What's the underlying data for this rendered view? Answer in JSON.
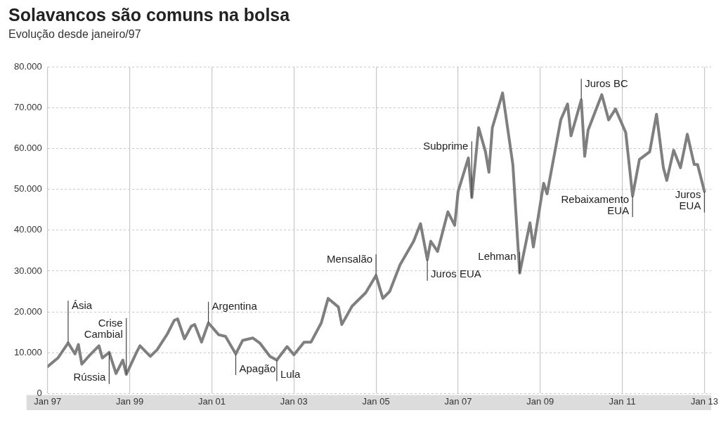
{
  "chart_data": {
    "type": "line",
    "title": "Solavancos são comuns na bolsa",
    "subtitle": "Evolução desde janeiro/97",
    "series": [
      {
        "color": "#7f7f7f",
        "x": [
          "1997-01",
          "1997-04",
          "1997-07",
          "1997-09",
          "1997-10",
          "1997-11",
          "1998-01",
          "1998-04",
          "1998-05",
          "1998-07",
          "1998-09",
          "1998-11",
          "1998-12",
          "1999-03",
          "1999-04",
          "1999-07",
          "1999-09",
          "1999-12",
          "2000-02",
          "2000-03",
          "2000-05",
          "2000-07",
          "2000-08",
          "2000-10",
          "2000-12",
          "2001-03",
          "2001-05",
          "2001-08",
          "2001-10",
          "2002-01",
          "2002-03",
          "2002-06",
          "2002-08",
          "2002-11",
          "2003-01",
          "2003-04",
          "2003-06",
          "2003-09",
          "2003-11",
          "2004-02",
          "2004-03",
          "2004-06",
          "2004-10",
          "2005-01",
          "2005-03",
          "2005-05",
          "2005-08",
          "2005-12",
          "2006-02",
          "2006-04",
          "2006-05",
          "2006-07",
          "2006-10",
          "2006-12",
          "2007-01",
          "2007-04",
          "2007-05",
          "2007-07",
          "2007-09",
          "2007-10",
          "2007-11",
          "2008-02",
          "2008-05",
          "2008-07",
          "2008-10",
          "2008-11",
          "2009-02",
          "2009-03",
          "2009-07",
          "2009-09",
          "2009-10",
          "2010-01",
          "2010-02",
          "2010-03",
          "2010-07",
          "2010-09",
          "2010-11",
          "2011-02",
          "2011-04",
          "2011-06",
          "2011-09",
          "2011-11",
          "2012-01",
          "2012-02",
          "2012-04",
          "2012-06",
          "2012-08",
          "2012-10",
          "2012-11",
          "2013-01"
        ],
        "values": [
          6600,
          8700,
          12400,
          9700,
          12000,
          7200,
          9100,
          11700,
          8700,
          10100,
          4900,
          8200,
          4700,
          10100,
          11700,
          9100,
          10700,
          14600,
          17900,
          18300,
          13400,
          16500,
          16900,
          12600,
          17300,
          14400,
          14000,
          9700,
          13000,
          13600,
          12400,
          9100,
          8200,
          11500,
          9500,
          12600,
          12600,
          17300,
          23300,
          21200,
          16900,
          21400,
          24700,
          28900,
          23300,
          25000,
          31500,
          37300,
          41600,
          32800,
          37300,
          34800,
          44500,
          41200,
          49500,
          57700,
          48000,
          65100,
          59200,
          54200,
          65100,
          73600,
          56100,
          29500,
          41800,
          35900,
          51500,
          48900,
          67000,
          70900,
          63100,
          71900,
          58100,
          64500,
          73200,
          67000,
          69700,
          63900,
          48400,
          57300,
          59200,
          68400,
          55300,
          52200,
          59600,
          55300,
          63500,
          56100,
          56100,
          49500
        ]
      }
    ],
    "xlim": [
      "1997-01",
      "2013-03"
    ],
    "xticks": [
      {
        "value": "1997-01",
        "label": "Jan 97"
      },
      {
        "value": "1999-01",
        "label": "Jan 99"
      },
      {
        "value": "2001-01",
        "label": "Jan 01"
      },
      {
        "value": "2003-01",
        "label": "Jan 03"
      },
      {
        "value": "2005-01",
        "label": "Jan 05"
      },
      {
        "value": "2007-01",
        "label": "Jan 07"
      },
      {
        "value": "2009-01",
        "label": "Jan 09"
      },
      {
        "value": "2011-01",
        "label": "Jan 11"
      },
      {
        "value": "2013-01",
        "label": "Jan 13"
      }
    ],
    "ylim": [
      0,
      80000
    ],
    "yticks": [
      0,
      {
        "value": 10000,
        "label": "10.000"
      },
      {
        "value": 20000,
        "label": "20.000"
      },
      {
        "value": 30000,
        "label": "30.000"
      },
      {
        "value": 40000,
        "label": "40.000"
      },
      {
        "value": 50000,
        "label": "50.000"
      },
      {
        "value": 60000,
        "label": "60.000"
      },
      {
        "value": 70000,
        "label": "70.000"
      },
      {
        "value": 80000,
        "label": "80.000"
      }
    ],
    "grid": true,
    "annotations": [
      {
        "text": "Ásia",
        "x": "1997-07",
        "y": 12400
      },
      {
        "text": "Rússia",
        "x": "1998-07",
        "y": 10100
      },
      {
        "text": "Crise\nCambial",
        "x": "1998-12",
        "y": 4700
      },
      {
        "text": "Argentina",
        "x": "2000-12",
        "y": 17300
      },
      {
        "text": "Apagão",
        "x": "2001-08",
        "y": 9700
      },
      {
        "text": "Lula",
        "x": "2002-08",
        "y": 8200
      },
      {
        "text": "Mensalão",
        "x": "2005-01",
        "y": 28900
      },
      {
        "text": "Juros EUA",
        "x": "2006-04",
        "y": 32800
      },
      {
        "text": "Subprime",
        "x": "2007-05",
        "y": 48000
      },
      {
        "text": "Lehman",
        "x": "2008-07",
        "y": 29500
      },
      {
        "text": "Juros BC",
        "x": "2010-01",
        "y": 71900
      },
      {
        "text": "Rebaixamento\nEUA",
        "x": "2011-04",
        "y": 48400
      },
      {
        "text": "Juros\nEUA",
        "x": "2013-01",
        "y": 49500
      }
    ]
  }
}
